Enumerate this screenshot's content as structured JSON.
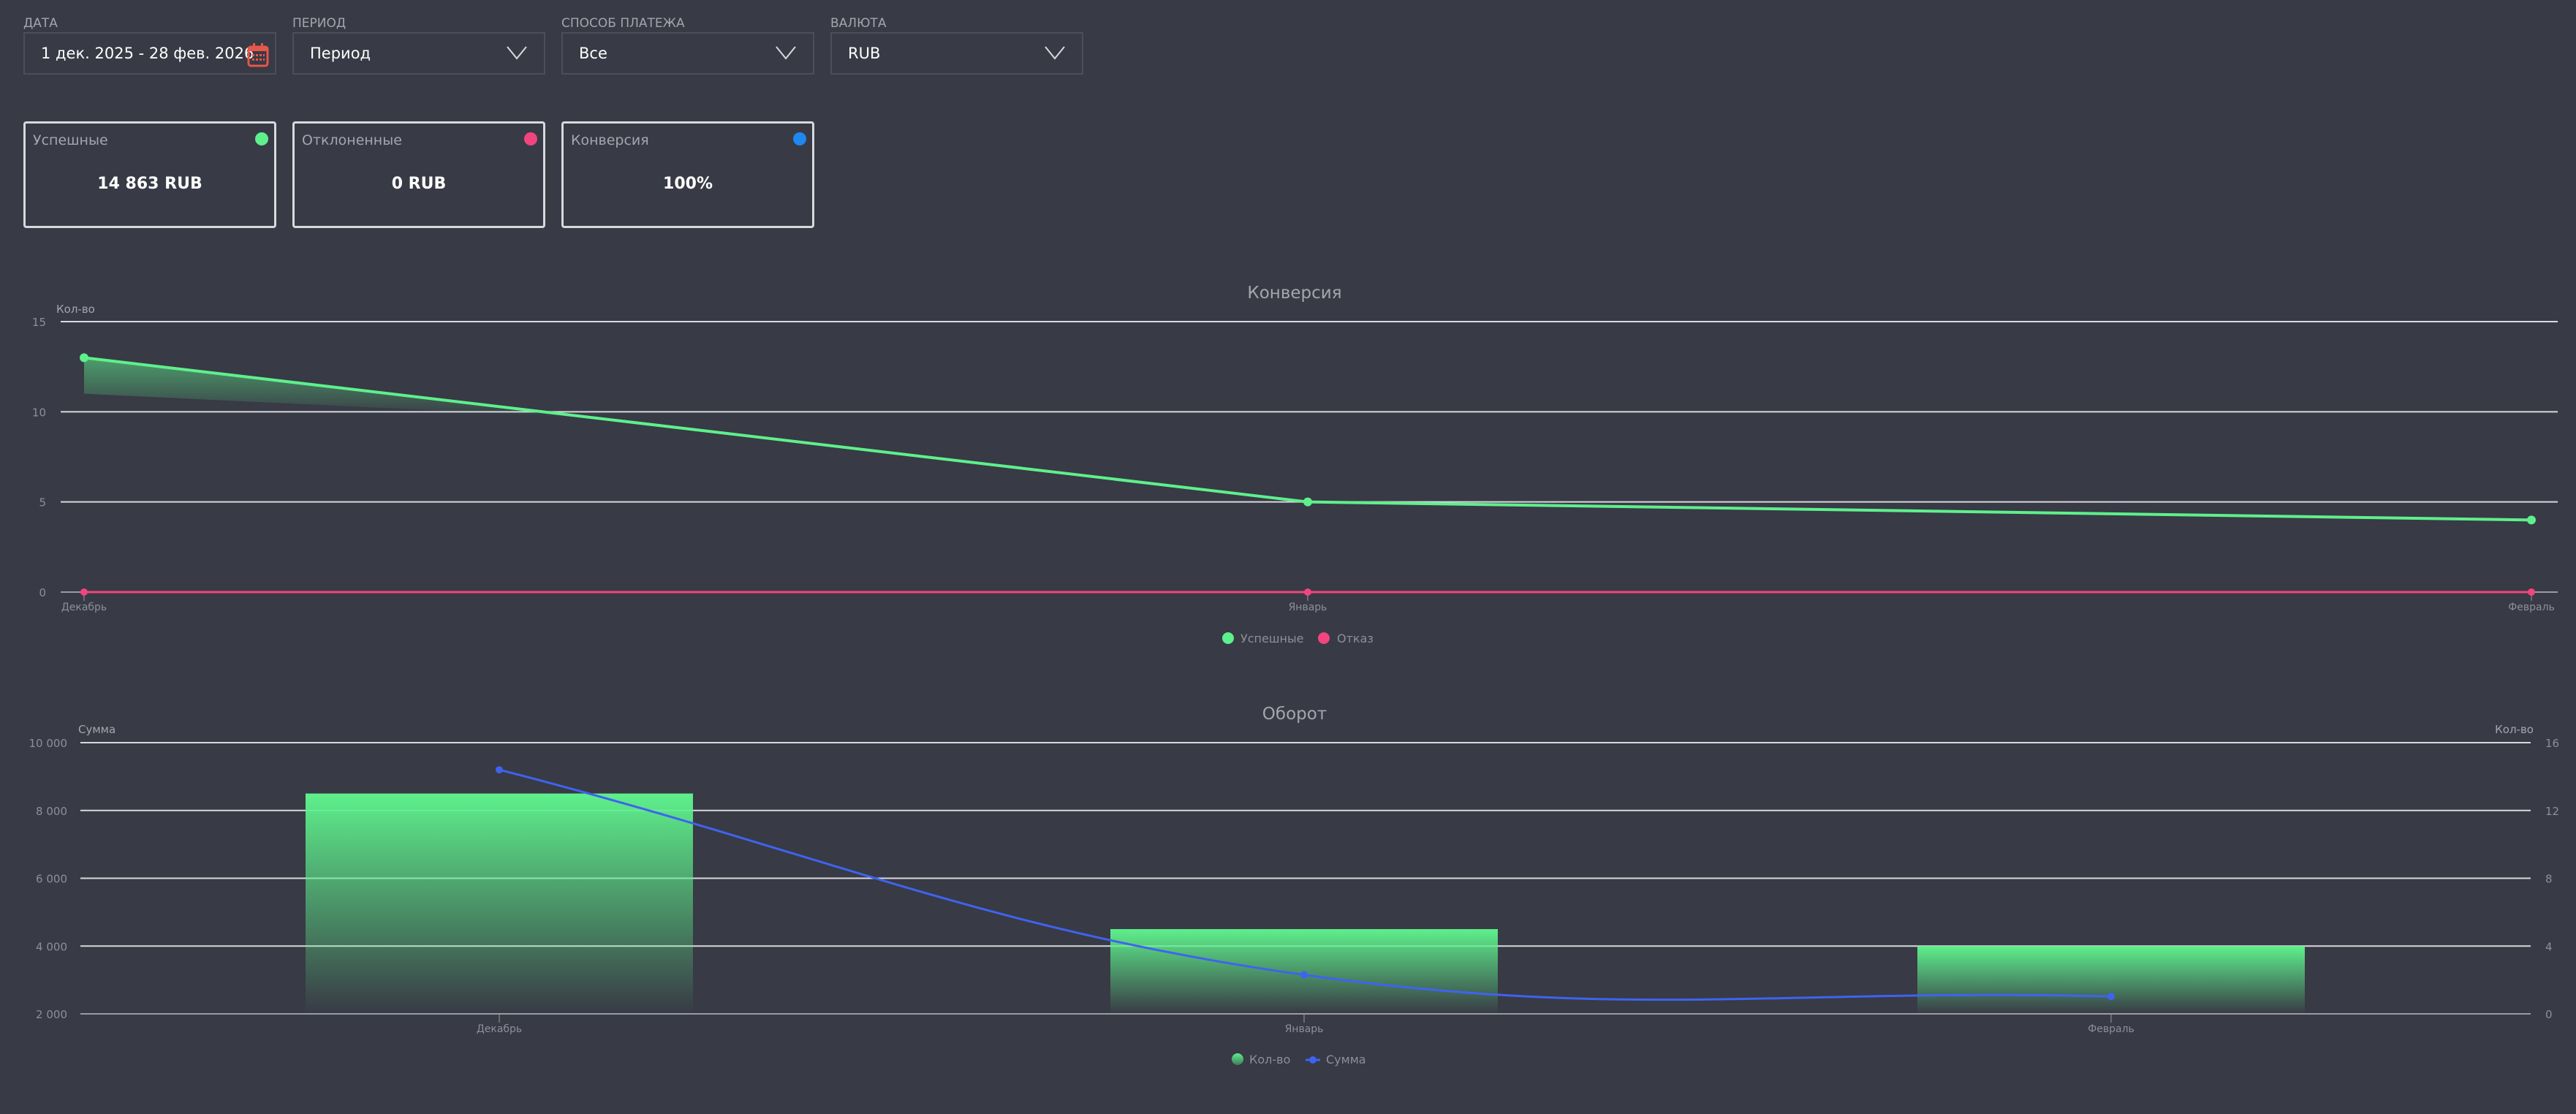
{
  "filters": {
    "date": {
      "label": "ДАТА",
      "value": "1 дек. 2025 - 28 фев. 2026",
      "icon": "calendar-icon"
    },
    "period": {
      "label": "ПЕРИОД",
      "value": "Период",
      "icon": "chevron-down-icon"
    },
    "payment_method": {
      "label": "СПОСОБ ПЛАТЕЖА",
      "value": "Все",
      "icon": "chevron-down-icon"
    },
    "currency": {
      "label": "ВАЛЮТА",
      "value": "RUB",
      "icon": "chevron-down-icon"
    }
  },
  "cards": [
    {
      "title": "Успешные",
      "value": "14 863 RUB",
      "color": "#5ef08c"
    },
    {
      "title": "Отклоненные",
      "value": "0 RUB",
      "color": "#f2457f"
    },
    {
      "title": "Конверсия",
      "value": "100%",
      "color": "#1e88f0"
    }
  ],
  "colors": {
    "success": "#5ef08c",
    "fail": "#f2457f",
    "sum": "#3f63f0",
    "calendar": "#e5574a"
  },
  "chart_data": [
    {
      "type": "line",
      "title": "Конверсия",
      "ylabel": "Кол-во",
      "categories": [
        "Декабрь",
        "Январь",
        "Февраль"
      ],
      "ylim": [
        0,
        15
      ],
      "yticks": [
        "0",
        "5",
        "10",
        "15"
      ],
      "grid": true,
      "legend_position": "bottom",
      "series": [
        {
          "name": "Успешные",
          "values": [
            13,
            5,
            4
          ]
        },
        {
          "name": "Отказ",
          "values": [
            0,
            0,
            0
          ]
        }
      ]
    },
    {
      "type": "bar",
      "title": "Оборот",
      "ylabel": "Сумма",
      "y2label": "Кол-во",
      "categories": [
        "Декабрь",
        "Январь",
        "Февраль"
      ],
      "ylim": [
        2000,
        10000
      ],
      "yticks": [
        "2 000",
        "4 000",
        "6 000",
        "8 000",
        "10 000"
      ],
      "y2lim": [
        0,
        16
      ],
      "y2ticks": [
        "0",
        "4",
        "8",
        "12",
        "16"
      ],
      "grid": true,
      "legend_position": "bottom",
      "series": [
        {
          "name": "Кол-во",
          "type": "bar",
          "axis": "right",
          "values": [
            13,
            5,
            4
          ]
        },
        {
          "name": "Сумма",
          "type": "line",
          "axis": "left",
          "values": [
            9200,
            3150,
            2513
          ]
        }
      ]
    }
  ]
}
